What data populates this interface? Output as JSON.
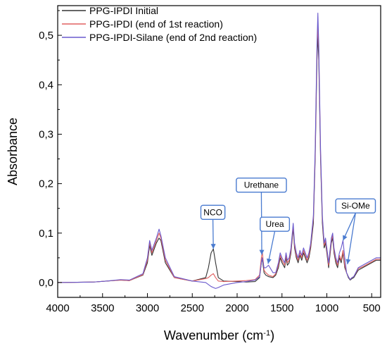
{
  "chart_data": {
    "type": "line",
    "title": "",
    "xlabel": "Wavenumber (cm",
    "xlabel_sup": "-1",
    "xlabel_end": ")",
    "ylabel": "Absorbance",
    "xlim": [
      4000,
      400
    ],
    "ylim": [
      -0.03,
      0.56
    ],
    "x_ticks": [
      4000,
      3500,
      3000,
      2500,
      2000,
      1500,
      1000,
      500
    ],
    "x_tick_labels": [
      "4000",
      "3500",
      "3000",
      "2500",
      "2000",
      "1500",
      "1000",
      "500"
    ],
    "y_ticks": [
      0.0,
      0.1,
      0.2,
      0.3,
      0.4,
      0.5
    ],
    "y_tick_labels": [
      "0,0",
      "0,1",
      "0,2",
      "0,3",
      "0,4",
      "0,5"
    ],
    "grid": false,
    "legend": "top-left",
    "series": [
      {
        "name": "PPG-IPDI Initial",
        "color": "#333333",
        "x": [
          4000,
          3600,
          3450,
          3300,
          3200,
          3050,
          3000,
          2975,
          2950,
          2920,
          2900,
          2870,
          2850,
          2800,
          2700,
          2500,
          2350,
          2320,
          2290,
          2265,
          2240,
          2210,
          2150,
          2000,
          1900,
          1800,
          1750,
          1730,
          1720,
          1710,
          1700,
          1680,
          1650,
          1600,
          1570,
          1540,
          1520,
          1500,
          1470,
          1455,
          1440,
          1420,
          1400,
          1375,
          1360,
          1340,
          1320,
          1300,
          1280,
          1260,
          1240,
          1220,
          1200,
          1180,
          1150,
          1130,
          1110,
          1100,
          1090,
          1070,
          1050,
          1030,
          1015,
          1000,
          980,
          950,
          935,
          920,
          900,
          880,
          860,
          840,
          820,
          800,
          780,
          760,
          740,
          720,
          700,
          650,
          600,
          550,
          500,
          450,
          400
        ],
        "y": [
          0.0,
          0.001,
          0.003,
          0.005,
          0.004,
          0.015,
          0.04,
          0.075,
          0.055,
          0.07,
          0.08,
          0.09,
          0.085,
          0.04,
          0.01,
          0.003,
          0.01,
          0.03,
          0.06,
          0.068,
          0.04,
          0.01,
          0.003,
          0.002,
          0.001,
          0.002,
          0.01,
          0.04,
          0.05,
          0.035,
          0.02,
          0.015,
          0.012,
          0.01,
          0.015,
          0.03,
          0.05,
          0.04,
          0.03,
          0.05,
          0.035,
          0.04,
          0.06,
          0.11,
          0.07,
          0.05,
          0.04,
          0.055,
          0.045,
          0.06,
          0.05,
          0.04,
          0.05,
          0.07,
          0.12,
          0.25,
          0.45,
          0.5,
          0.45,
          0.25,
          0.12,
          0.07,
          0.08,
          0.06,
          0.03,
          0.08,
          0.09,
          0.06,
          0.04,
          0.03,
          0.05,
          0.04,
          0.06,
          0.03,
          0.02,
          0.01,
          0.005,
          0.008,
          0.01,
          0.025,
          0.03,
          0.035,
          0.04,
          0.045,
          0.045
        ]
      },
      {
        "name": "PPG-IPDI (end of 1st reaction)",
        "color": "#e06060",
        "x": [
          4000,
          3600,
          3450,
          3300,
          3200,
          3050,
          3000,
          2975,
          2950,
          2920,
          2900,
          2870,
          2850,
          2800,
          2700,
          2500,
          2350,
          2320,
          2290,
          2265,
          2240,
          2210,
          2150,
          2000,
          1900,
          1800,
          1750,
          1730,
          1720,
          1710,
          1700,
          1680,
          1650,
          1600,
          1570,
          1540,
          1520,
          1500,
          1470,
          1455,
          1440,
          1420,
          1400,
          1375,
          1360,
          1340,
          1320,
          1300,
          1280,
          1260,
          1240,
          1220,
          1200,
          1180,
          1150,
          1130,
          1110,
          1100,
          1090,
          1070,
          1050,
          1030,
          1015,
          1000,
          980,
          950,
          935,
          920,
          900,
          880,
          860,
          840,
          820,
          800,
          780,
          760,
          740,
          720,
          700,
          650,
          600,
          550,
          500,
          450,
          400
        ],
        "y": [
          0.0,
          0.001,
          0.003,
          0.005,
          0.004,
          0.016,
          0.045,
          0.08,
          0.06,
          0.075,
          0.085,
          0.1,
          0.09,
          0.045,
          0.01,
          0.003,
          0.008,
          0.01,
          0.015,
          0.018,
          0.01,
          0.003,
          0.002,
          0.003,
          0.004,
          0.006,
          0.015,
          0.05,
          0.065,
          0.045,
          0.025,
          0.02,
          0.015,
          0.012,
          0.018,
          0.035,
          0.055,
          0.045,
          0.035,
          0.055,
          0.04,
          0.045,
          0.065,
          0.115,
          0.075,
          0.055,
          0.045,
          0.06,
          0.05,
          0.065,
          0.055,
          0.045,
          0.055,
          0.075,
          0.13,
          0.26,
          0.47,
          0.52,
          0.47,
          0.26,
          0.13,
          0.075,
          0.085,
          0.065,
          0.035,
          0.085,
          0.095,
          0.065,
          0.045,
          0.035,
          0.055,
          0.045,
          0.065,
          0.035,
          0.02,
          0.012,
          0.006,
          0.01,
          0.012,
          0.028,
          0.032,
          0.037,
          0.042,
          0.047,
          0.047
        ]
      },
      {
        "name": "PPG-IPDI-Silane (end of 2nd reaction)",
        "color": "#6a5acd",
        "x": [
          4000,
          3600,
          3450,
          3300,
          3200,
          3050,
          3000,
          2975,
          2950,
          2920,
          2900,
          2870,
          2850,
          2800,
          2700,
          2500,
          2350,
          2320,
          2290,
          2265,
          2240,
          2210,
          2150,
          2000,
          1900,
          1800,
          1750,
          1730,
          1720,
          1710,
          1700,
          1680,
          1650,
          1600,
          1570,
          1540,
          1520,
          1500,
          1470,
          1455,
          1440,
          1420,
          1400,
          1375,
          1360,
          1340,
          1320,
          1300,
          1280,
          1260,
          1240,
          1220,
          1200,
          1180,
          1150,
          1130,
          1110,
          1100,
          1090,
          1070,
          1050,
          1030,
          1015,
          1000,
          980,
          950,
          935,
          920,
          900,
          880,
          860,
          840,
          820,
          800,
          780,
          760,
          740,
          720,
          700,
          650,
          600,
          550,
          500,
          450,
          400
        ],
        "y": [
          0.0,
          0.001,
          0.003,
          0.006,
          0.005,
          0.018,
          0.05,
          0.085,
          0.065,
          0.08,
          0.09,
          0.108,
          0.095,
          0.05,
          0.012,
          0.003,
          0.0,
          -0.004,
          -0.008,
          -0.01,
          -0.012,
          -0.01,
          -0.005,
          0.0,
          0.002,
          0.005,
          0.012,
          0.04,
          0.05,
          0.04,
          0.03,
          0.03,
          0.035,
          0.02,
          0.02,
          0.04,
          0.06,
          0.05,
          0.04,
          0.06,
          0.045,
          0.05,
          0.07,
          0.12,
          0.08,
          0.06,
          0.05,
          0.065,
          0.055,
          0.07,
          0.06,
          0.05,
          0.06,
          0.08,
          0.135,
          0.27,
          0.48,
          0.545,
          0.48,
          0.27,
          0.135,
          0.08,
          0.09,
          0.07,
          0.04,
          0.09,
          0.1,
          0.07,
          0.05,
          0.04,
          0.06,
          0.07,
          0.085,
          0.05,
          0.02,
          0.012,
          0.006,
          0.01,
          0.012,
          0.03,
          0.035,
          0.04,
          0.045,
          0.05,
          0.05
        ]
      }
    ],
    "annotations": [
      {
        "label": "NCO",
        "box_x": 2270,
        "box_y": 0.142,
        "arrow_x": 2265,
        "arrow_y": 0.068
      },
      {
        "label": "Urethane",
        "box_x": 1730,
        "box_y": 0.197,
        "arrow_x": 1725,
        "arrow_y": 0.056
      },
      {
        "label": "Urea",
        "box_x": 1580,
        "box_y": 0.118,
        "arrow_x": 1655,
        "arrow_y": 0.038
      },
      {
        "label": "Si-OMe",
        "box_x": 680,
        "box_y": 0.155,
        "arrow_x": 820,
        "arrow_y": 0.085,
        "arrow2_x": 770,
        "arrow2_y": 0.037
      }
    ]
  }
}
